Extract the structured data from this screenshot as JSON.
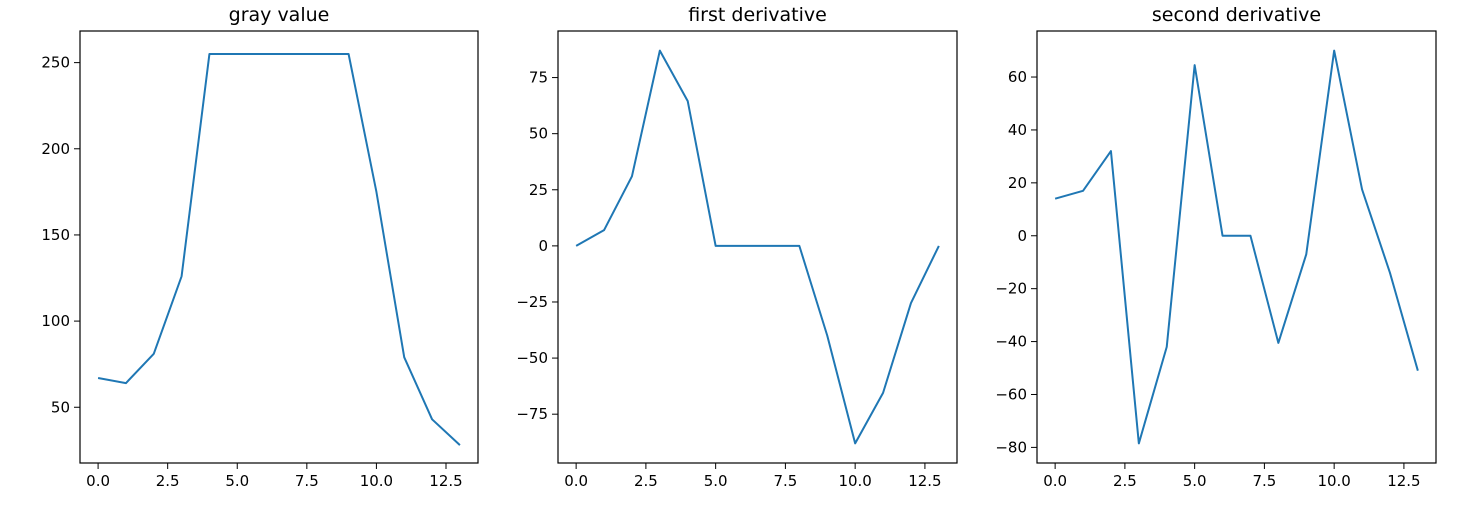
{
  "chart_data": [
    {
      "type": "line",
      "title": "gray value",
      "xlabel": "",
      "ylabel": "",
      "x": [
        0,
        1,
        2,
        3,
        4,
        5,
        6,
        7,
        8,
        9,
        10,
        11,
        12,
        13
      ],
      "series": [
        {
          "values": [
            67,
            64,
            81,
            126,
            255,
            255,
            255,
            255,
            255,
            255,
            175,
            79,
            43,
            28
          ]
        }
      ],
      "xlim": [
        -0.65,
        13.65
      ],
      "ylim": [
        17.65,
        268.35
      ],
      "xticks": [
        0,
        2.5,
        5,
        7.5,
        10,
        12.5
      ],
      "xtick_labels": [
        "0.0",
        "2.5",
        "5.0",
        "7.5",
        "10.0",
        "12.5"
      ],
      "yticks": [
        50,
        100,
        150,
        200,
        250
      ],
      "ytick_labels": [
        "50",
        "100",
        "150",
        "200",
        "250"
      ],
      "grid": false,
      "color": "#1f77b4"
    },
    {
      "type": "line",
      "title": "first derivative",
      "xlabel": "",
      "ylabel": "",
      "x": [
        0,
        1,
        2,
        3,
        4,
        5,
        6,
        7,
        8,
        9,
        10,
        11,
        12,
        13
      ],
      "series": [
        {
          "values": [
            0,
            7,
            31,
            87,
            64.5,
            0,
            0,
            0,
            0,
            -40,
            -88,
            -65.5,
            -25.5,
            0
          ]
        }
      ],
      "xlim": [
        -0.65,
        13.65
      ],
      "ylim": [
        -96.75,
        95.75
      ],
      "xticks": [
        0,
        2.5,
        5,
        7.5,
        10,
        12.5
      ],
      "xtick_labels": [
        "0.0",
        "2.5",
        "5.0",
        "7.5",
        "10.0",
        "12.5"
      ],
      "yticks": [
        -75,
        -50,
        -25,
        0,
        25,
        50,
        75
      ],
      "ytick_labels": [
        "−75",
        "−50",
        "−25",
        "0",
        "25",
        "50",
        "75"
      ],
      "grid": false,
      "color": "#1f77b4"
    },
    {
      "type": "line",
      "title": "second derivative",
      "xlabel": "",
      "ylabel": "",
      "x": [
        0,
        1,
        2,
        3,
        4,
        5,
        6,
        7,
        8,
        9,
        10,
        11,
        12,
        13
      ],
      "series": [
        {
          "values": [
            14,
            17,
            32,
            -78.5,
            -42,
            64.5,
            0,
            0,
            -40.5,
            -7,
            70,
            17.5,
            -14,
            -51
          ]
        }
      ],
      "xlim": [
        -0.65,
        13.65
      ],
      "ylim": [
        -85.9,
        77.4
      ],
      "xticks": [
        0,
        2.5,
        5,
        7.5,
        10,
        12.5
      ],
      "xtick_labels": [
        "0.0",
        "2.5",
        "5.0",
        "7.5",
        "10.0",
        "12.5"
      ],
      "yticks": [
        -80,
        -60,
        -40,
        -20,
        0,
        20,
        40,
        60
      ],
      "ytick_labels": [
        "−80",
        "−60",
        "−40",
        "−20",
        "0",
        "20",
        "40",
        "60"
      ],
      "grid": false,
      "color": "#1f77b4"
    }
  ]
}
